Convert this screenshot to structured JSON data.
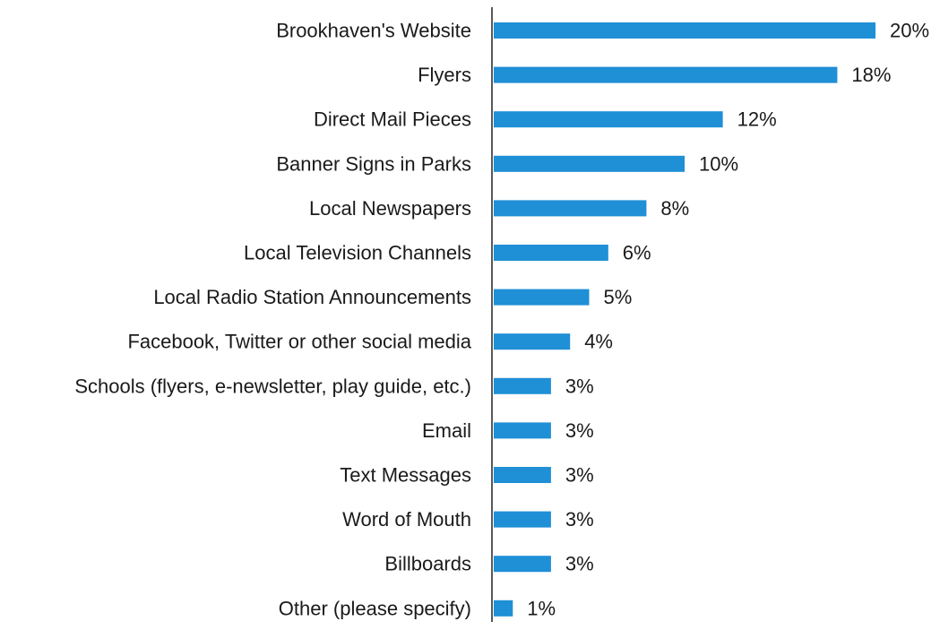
{
  "chart_data": {
    "type": "bar",
    "orientation": "horizontal",
    "title": "",
    "xlabel": "",
    "ylabel": "",
    "xlim": [
      0,
      20
    ],
    "grid": false,
    "legend": "none",
    "bar_color": "#1f8fd6",
    "value_suffix": "%",
    "categories": [
      "Brookhaven's Website",
      "Flyers",
      "Direct Mail Pieces",
      "Banner Signs in Parks",
      "Local Newspapers",
      "Local Television Channels",
      "Local Radio Station Announcements",
      "Facebook, Twitter or other social media",
      "Schools (flyers, e-newsletter, play guide, etc.)",
      "Email",
      "Text Messages",
      "Word of Mouth",
      "Billboards",
      "Other (please specify)"
    ],
    "values": [
      20,
      18,
      12,
      10,
      8,
      6,
      5,
      4,
      3,
      3,
      3,
      3,
      3,
      1
    ],
    "value_labels": [
      "20%",
      "18%",
      "12%",
      "10%",
      "8%",
      "6%",
      "5%",
      "4%",
      "3%",
      "3%",
      "3%",
      "3%",
      "3%",
      "1%"
    ]
  }
}
